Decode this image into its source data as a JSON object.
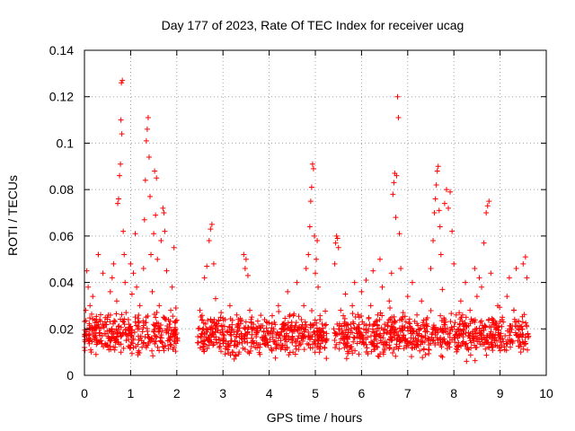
{
  "colors": {
    "marker": "#ff0000",
    "grid": "#a0a0a0",
    "axis": "#000000",
    "background": "#ffffff"
  },
  "chart_data": {
    "type": "scatter",
    "title": "Day 177 of 2023, Rate Of TEC Index for receiver ucag",
    "xlabel": "GPS time / hours",
    "ylabel": "ROTI / TECUs",
    "xlim": [
      0,
      10
    ],
    "ylim": [
      0,
      0.14
    ],
    "xticks": [
      0,
      1,
      2,
      3,
      4,
      5,
      6,
      7,
      8,
      9,
      10
    ],
    "xtick_labels": [
      "0",
      "1",
      "2",
      "3",
      "4",
      "5",
      "6",
      "7",
      "8",
      "9",
      "10"
    ],
    "yticks": [
      0,
      0.02,
      0.04,
      0.06,
      0.08,
      0.1,
      0.12,
      0.14
    ],
    "ytick_labels": [
      "0",
      "0.02",
      "0.04",
      "0.06",
      "0.08",
      "0.1",
      "0.12",
      "0.14"
    ],
    "grid": true,
    "marker": "+",
    "series": [
      {
        "name": "ROTI",
        "points": [
          [
            0.0,
            0.012
          ],
          [
            0.03,
            0.028
          ],
          [
            0.05,
            0.045
          ],
          [
            0.08,
            0.038
          ],
          [
            0.1,
            0.016
          ],
          [
            0.12,
            0.03
          ],
          [
            0.15,
            0.01
          ],
          [
            0.18,
            0.034
          ],
          [
            0.22,
            0.02
          ],
          [
            0.25,
            0.009
          ],
          [
            0.28,
            0.014
          ],
          [
            0.3,
            0.052
          ],
          [
            0.33,
            0.024
          ],
          [
            0.36,
            0.015
          ],
          [
            0.4,
            0.044
          ],
          [
            0.43,
            0.018
          ],
          [
            0.46,
            0.013
          ],
          [
            0.5,
            0.025
          ],
          [
            0.53,
            0.011
          ],
          [
            0.56,
            0.036
          ],
          [
            0.6,
            0.042
          ],
          [
            0.63,
            0.048
          ],
          [
            0.66,
            0.019
          ],
          [
            0.7,
            0.032
          ],
          [
            0.72,
            0.074
          ],
          [
            0.74,
            0.076
          ],
          [
            0.76,
            0.086
          ],
          [
            0.78,
            0.091
          ],
          [
            0.79,
            0.11
          ],
          [
            0.8,
            0.126
          ],
          [
            0.81,
            0.104
          ],
          [
            0.82,
            0.127
          ],
          [
            0.84,
            0.062
          ],
          [
            0.86,
            0.052
          ],
          [
            0.88,
            0.04
          ],
          [
            0.9,
            0.027
          ],
          [
            0.93,
            0.017
          ],
          [
            0.96,
            0.022
          ],
          [
            1.0,
            0.048
          ],
          [
            1.03,
            0.035
          ],
          [
            1.06,
            0.044
          ],
          [
            1.1,
            0.061
          ],
          [
            1.13,
            0.038
          ],
          [
            1.16,
            0.021
          ],
          [
            1.2,
            0.03
          ],
          [
            1.24,
            0.015
          ],
          [
            1.28,
            0.046
          ],
          [
            1.3,
            0.067
          ],
          [
            1.32,
            0.084
          ],
          [
            1.34,
            0.101
          ],
          [
            1.36,
            0.106
          ],
          [
            1.38,
            0.111
          ],
          [
            1.4,
            0.094
          ],
          [
            1.42,
            0.077
          ],
          [
            1.44,
            0.052
          ],
          [
            1.47,
            0.036
          ],
          [
            1.5,
            0.061
          ],
          [
            1.52,
            0.088
          ],
          [
            1.54,
            0.069
          ],
          [
            1.56,
            0.085
          ],
          [
            1.58,
            0.05
          ],
          [
            1.62,
            0.03
          ],
          [
            1.66,
            0.058
          ],
          [
            1.7,
            0.072
          ],
          [
            1.72,
            0.07
          ],
          [
            1.74,
            0.062
          ],
          [
            1.78,
            0.045
          ],
          [
            1.82,
            0.024
          ],
          [
            1.86,
            0.013
          ],
          [
            1.9,
            0.038
          ],
          [
            1.94,
            0.055
          ],
          [
            1.98,
            0.029
          ],
          [
            2.0,
            0.016
          ],
          [
            2.45,
            0.014
          ],
          [
            2.5,
            0.028
          ],
          [
            2.55,
            0.018
          ],
          [
            2.6,
            0.042
          ],
          [
            2.65,
            0.047
          ],
          [
            2.7,
            0.058
          ],
          [
            2.73,
            0.063
          ],
          [
            2.76,
            0.065
          ],
          [
            2.8,
            0.048
          ],
          [
            2.84,
            0.033
          ],
          [
            2.88,
            0.021
          ],
          [
            2.92,
            0.012
          ],
          [
            2.96,
            0.027
          ],
          [
            3.0,
            0.015
          ],
          [
            3.05,
            0.024
          ],
          [
            3.1,
            0.011
          ],
          [
            3.15,
            0.03
          ],
          [
            3.2,
            0.02
          ],
          [
            3.25,
            0.013
          ],
          [
            3.3,
            0.026
          ],
          [
            3.35,
            0.01
          ],
          [
            3.4,
            0.018
          ],
          [
            3.45,
            0.052
          ],
          [
            3.48,
            0.046
          ],
          [
            3.5,
            0.05
          ],
          [
            3.54,
            0.043
          ],
          [
            3.58,
            0.028
          ],
          [
            3.62,
            0.014
          ],
          [
            3.66,
            0.022
          ],
          [
            3.7,
            0.012
          ],
          [
            3.75,
            0.019
          ],
          [
            3.8,
            0.009
          ],
          [
            3.85,
            0.016
          ],
          [
            3.9,
            0.024
          ],
          [
            3.95,
            0.013
          ],
          [
            4.0,
            0.018
          ],
          [
            4.05,
            0.011
          ],
          [
            4.1,
            0.02
          ],
          [
            4.15,
            0.012
          ],
          [
            4.2,
            0.03
          ],
          [
            4.25,
            0.015
          ],
          [
            4.3,
            0.022
          ],
          [
            4.35,
            0.011
          ],
          [
            4.4,
            0.036
          ],
          [
            4.45,
            0.026
          ],
          [
            4.5,
            0.014
          ],
          [
            4.55,
            0.019
          ],
          [
            4.6,
            0.04
          ],
          [
            4.65,
            0.013
          ],
          [
            4.7,
            0.024
          ],
          [
            4.75,
            0.03
          ],
          [
            4.8,
            0.046
          ],
          [
            4.85,
            0.052
          ],
          [
            4.88,
            0.064
          ],
          [
            4.9,
            0.075
          ],
          [
            4.92,
            0.081
          ],
          [
            4.94,
            0.091
          ],
          [
            4.96,
            0.089
          ],
          [
            4.98,
            0.06
          ],
          [
            5.0,
            0.044
          ],
          [
            5.02,
            0.05
          ],
          [
            5.04,
            0.058
          ],
          [
            5.06,
            0.038
          ],
          [
            5.1,
            0.024
          ],
          [
            5.15,
            0.016
          ],
          [
            5.2,
            0.012
          ],
          [
            5.4,
            0.02
          ],
          [
            5.42,
            0.048
          ],
          [
            5.44,
            0.057
          ],
          [
            5.46,
            0.06
          ],
          [
            5.48,
            0.059
          ],
          [
            5.5,
            0.055
          ],
          [
            5.55,
            0.028
          ],
          [
            5.6,
            0.016
          ],
          [
            5.65,
            0.035
          ],
          [
            5.7,
            0.022
          ],
          [
            5.75,
            0.012
          ],
          [
            5.8,
            0.03
          ],
          [
            5.85,
            0.04
          ],
          [
            5.9,
            0.018
          ],
          [
            5.95,
            0.025
          ],
          [
            6.0,
            0.036
          ],
          [
            6.05,
            0.014
          ],
          [
            6.1,
            0.041
          ],
          [
            6.15,
            0.02
          ],
          [
            6.2,
            0.03
          ],
          [
            6.25,
            0.045
          ],
          [
            6.3,
            0.017
          ],
          [
            6.35,
            0.026
          ],
          [
            6.4,
            0.05
          ],
          [
            6.45,
            0.038
          ],
          [
            6.5,
            0.022
          ],
          [
            6.55,
            0.013
          ],
          [
            6.6,
            0.032
          ],
          [
            6.65,
            0.044
          ],
          [
            6.68,
            0.078
          ],
          [
            6.7,
            0.083
          ],
          [
            6.72,
            0.087
          ],
          [
            6.74,
            0.068
          ],
          [
            6.76,
            0.086
          ],
          [
            6.78,
            0.12
          ],
          [
            6.8,
            0.111
          ],
          [
            6.82,
            0.061
          ],
          [
            6.85,
            0.046
          ],
          [
            6.9,
            0.027
          ],
          [
            6.95,
            0.015
          ],
          [
            7.0,
            0.034
          ],
          [
            7.05,
            0.021
          ],
          [
            7.1,
            0.04
          ],
          [
            7.15,
            0.012
          ],
          [
            7.2,
            0.026
          ],
          [
            7.25,
            0.018
          ],
          [
            7.3,
            0.032
          ],
          [
            7.35,
            0.011
          ],
          [
            7.4,
            0.024
          ],
          [
            7.45,
            0.015
          ],
          [
            7.5,
            0.046
          ],
          [
            7.55,
            0.058
          ],
          [
            7.58,
            0.07
          ],
          [
            7.6,
            0.076
          ],
          [
            7.62,
            0.082
          ],
          [
            7.64,
            0.088
          ],
          [
            7.66,
            0.09
          ],
          [
            7.68,
            0.071
          ],
          [
            7.7,
            0.064
          ],
          [
            7.72,
            0.052
          ],
          [
            7.75,
            0.037
          ],
          [
            7.8,
            0.074
          ],
          [
            7.84,
            0.08
          ],
          [
            7.88,
            0.072
          ],
          [
            7.92,
            0.079
          ],
          [
            7.96,
            0.062
          ],
          [
            8.0,
            0.048
          ],
          [
            8.05,
            0.026
          ],
          [
            8.1,
            0.014
          ],
          [
            8.15,
            0.032
          ],
          [
            8.2,
            0.022
          ],
          [
            8.25,
            0.04
          ],
          [
            8.3,
            0.012
          ],
          [
            8.35,
            0.028
          ],
          [
            8.4,
            0.018
          ],
          [
            8.45,
            0.046
          ],
          [
            8.5,
            0.034
          ],
          [
            8.55,
            0.042
          ],
          [
            8.6,
            0.038
          ],
          [
            8.65,
            0.057
          ],
          [
            8.7,
            0.07
          ],
          [
            8.73,
            0.073
          ],
          [
            8.76,
            0.075
          ],
          [
            8.8,
            0.044
          ],
          [
            8.85,
            0.024
          ],
          [
            8.9,
            0.013
          ],
          [
            8.95,
            0.03
          ],
          [
            9.0,
            0.017
          ],
          [
            9.05,
            0.025
          ],
          [
            9.1,
            0.011
          ],
          [
            9.15,
            0.034
          ],
          [
            9.2,
            0.042
          ],
          [
            9.25,
            0.015
          ],
          [
            9.3,
            0.028
          ],
          [
            9.35,
            0.046
          ],
          [
            9.4,
            0.02
          ],
          [
            9.45,
            0.01
          ],
          [
            9.5,
            0.048
          ],
          [
            9.55,
            0.051
          ],
          [
            9.58,
            0.042
          ],
          [
            9.6,
            0.018
          ]
        ]
      }
    ],
    "dense_band": {
      "description": "background scatter band",
      "segments": [
        [
          0.0,
          2.02
        ],
        [
          2.45,
          5.25
        ],
        [
          5.4,
          9.62
        ]
      ],
      "y_min": 0.005,
      "y_max": 0.03
    }
  }
}
